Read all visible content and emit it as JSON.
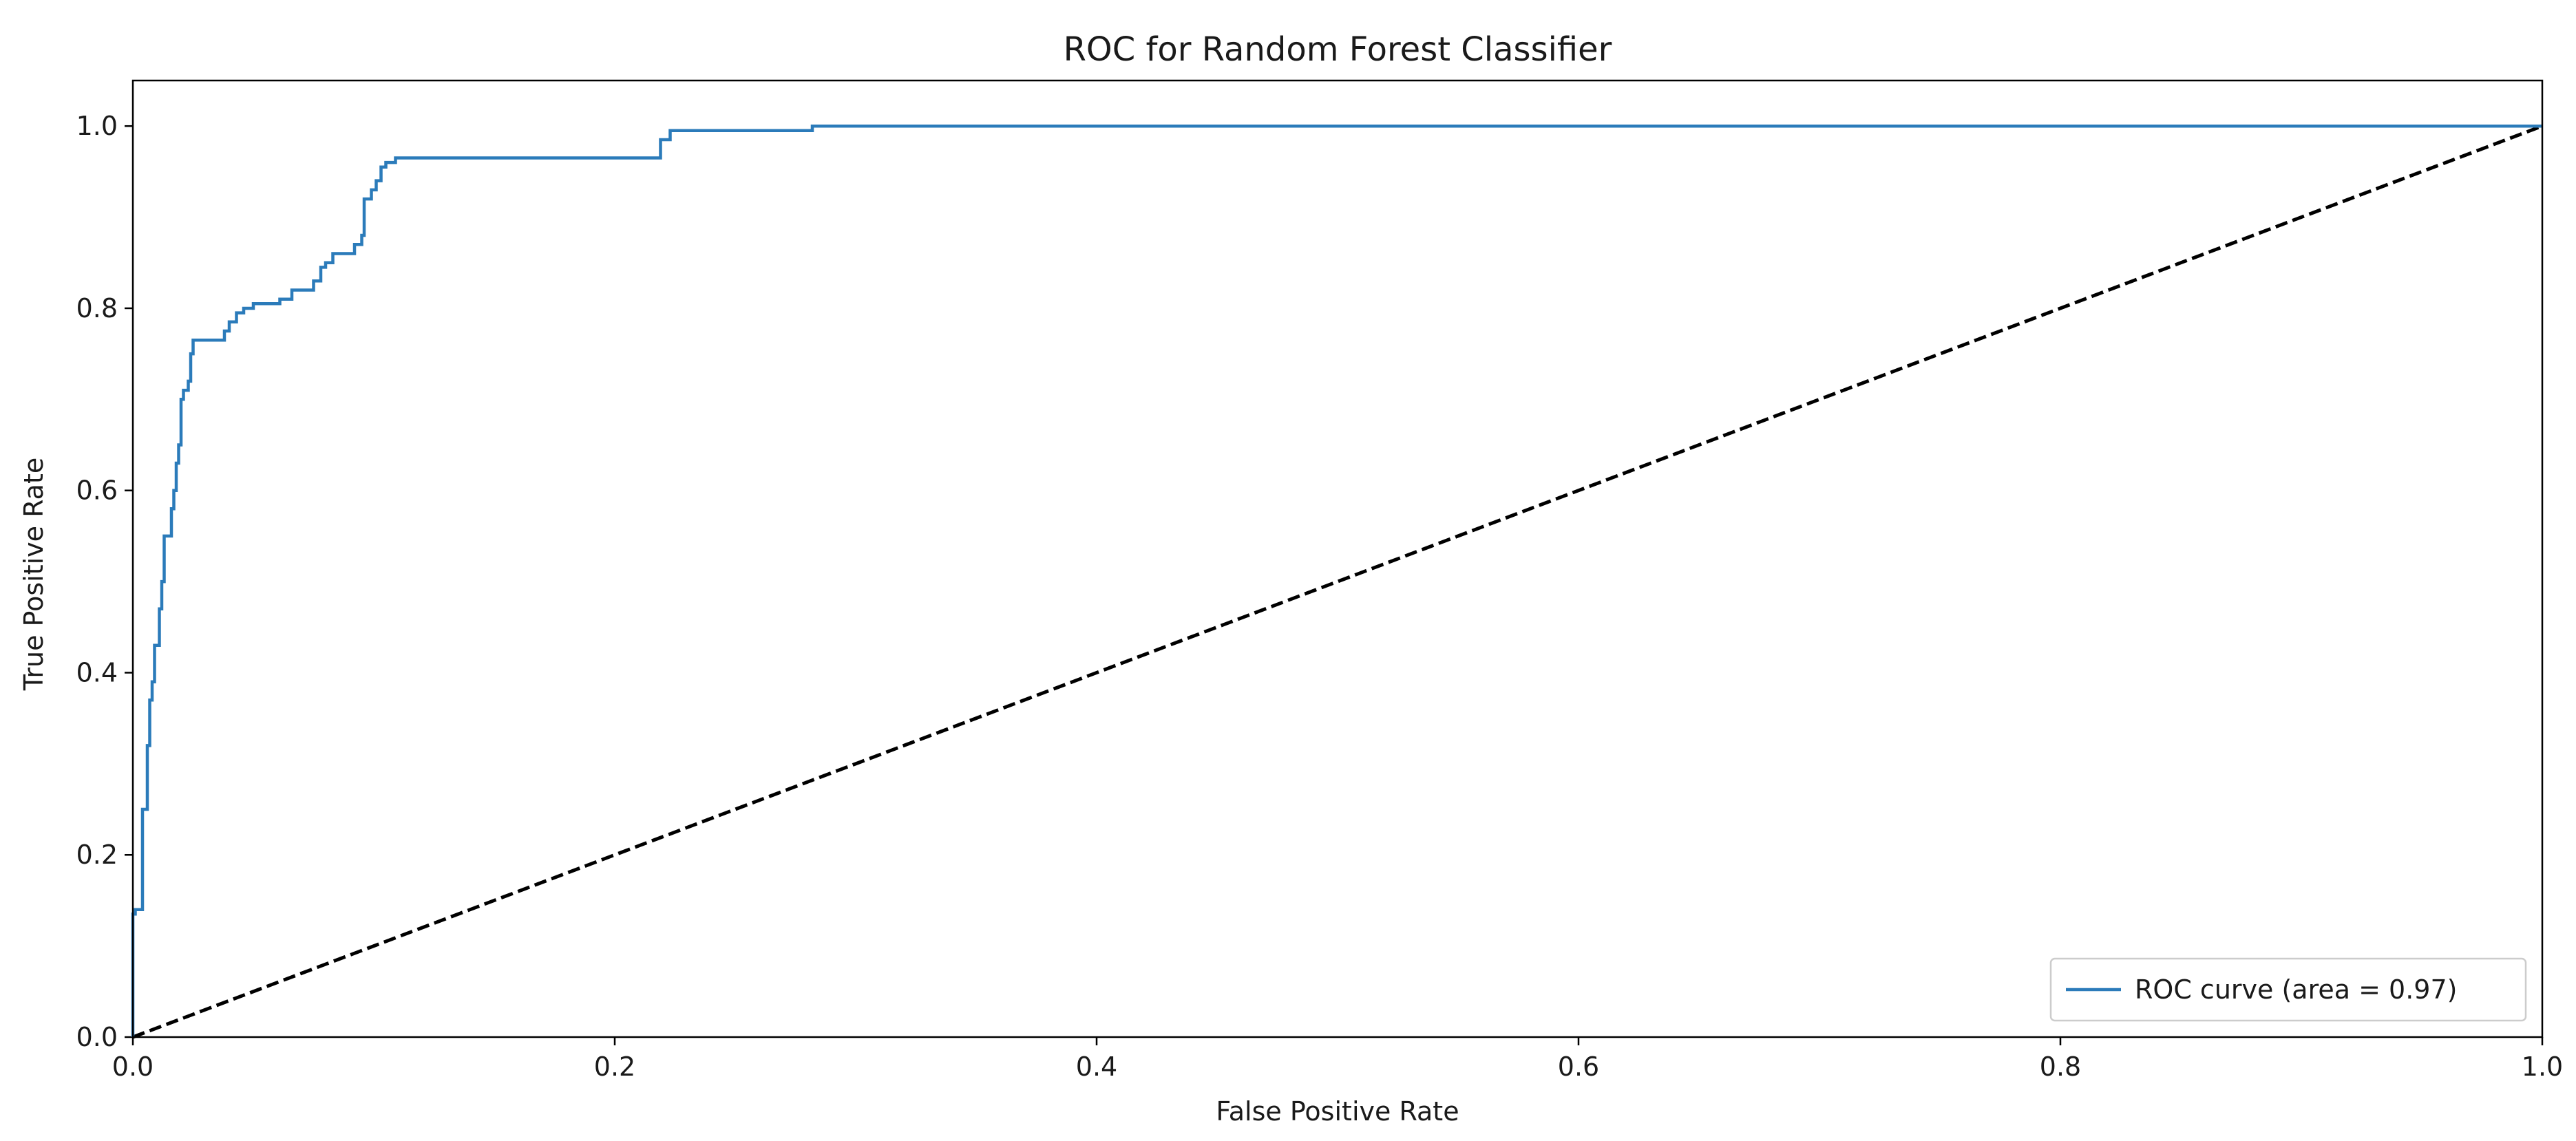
{
  "chart_data": {
    "type": "line",
    "title": "ROC for Random Forest Classifier",
    "xlabel": "False Positive Rate",
    "ylabel": "True Positive Rate",
    "xlim": [
      0.0,
      1.0
    ],
    "ylim": [
      0.0,
      1.05
    ],
    "xticks": [
      "0.0",
      "0.2",
      "0.4",
      "0.6",
      "0.8",
      "1.0"
    ],
    "yticks": [
      "0.0",
      "0.2",
      "0.4",
      "0.6",
      "0.8",
      "1.0"
    ],
    "grid": false,
    "legend_position": "lower-right",
    "series": [
      {
        "name": "ROC curve (area = 0.97)",
        "color": "#2b7bba",
        "style": "solid",
        "x": [
          0.0,
          0.0,
          0.0,
          0.001,
          0.001,
          0.004,
          0.004,
          0.006,
          0.006,
          0.007,
          0.007,
          0.008,
          0.008,
          0.009,
          0.009,
          0.011,
          0.011,
          0.012,
          0.012,
          0.013,
          0.013,
          0.016,
          0.016,
          0.017,
          0.017,
          0.018,
          0.018,
          0.019,
          0.019,
          0.02,
          0.02,
          0.021,
          0.021,
          0.023,
          0.023,
          0.024,
          0.024,
          0.025,
          0.025,
          0.026,
          0.026,
          0.03,
          0.038,
          0.038,
          0.04,
          0.04,
          0.043,
          0.043,
          0.046,
          0.046,
          0.05,
          0.05,
          0.061,
          0.061,
          0.066,
          0.066,
          0.075,
          0.075,
          0.078,
          0.078,
          0.08,
          0.08,
          0.083,
          0.083,
          0.092,
          0.092,
          0.095,
          0.095,
          0.096,
          0.096,
          0.099,
          0.099,
          0.101,
          0.101,
          0.103,
          0.103,
          0.105,
          0.105,
          0.109,
          0.109,
          0.112,
          0.112,
          0.219,
          0.219,
          0.223,
          0.223,
          0.282,
          0.282,
          1.0
        ],
        "y": [
          0.0,
          0.1,
          0.135,
          0.135,
          0.14,
          0.14,
          0.25,
          0.25,
          0.32,
          0.32,
          0.37,
          0.37,
          0.39,
          0.39,
          0.43,
          0.43,
          0.47,
          0.47,
          0.5,
          0.5,
          0.55,
          0.55,
          0.58,
          0.58,
          0.6,
          0.6,
          0.63,
          0.63,
          0.65,
          0.65,
          0.7,
          0.7,
          0.71,
          0.71,
          0.72,
          0.72,
          0.75,
          0.75,
          0.765,
          0.765,
          0.765,
          0.765,
          0.765,
          0.775,
          0.775,
          0.785,
          0.785,
          0.795,
          0.795,
          0.8,
          0.8,
          0.805,
          0.805,
          0.81,
          0.81,
          0.82,
          0.82,
          0.83,
          0.83,
          0.845,
          0.845,
          0.85,
          0.85,
          0.86,
          0.86,
          0.87,
          0.87,
          0.88,
          0.88,
          0.92,
          0.92,
          0.93,
          0.93,
          0.94,
          0.94,
          0.955,
          0.955,
          0.96,
          0.96,
          0.965,
          0.965,
          0.965,
          0.965,
          0.985,
          0.985,
          0.995,
          0.995,
          1.0,
          1.0
        ]
      },
      {
        "name": "",
        "color": "#000000",
        "style": "dashed",
        "x": [
          0.0,
          1.0
        ],
        "y": [
          0.0,
          1.0
        ]
      }
    ],
    "legend": [
      {
        "label": "ROC curve (area = 0.97)",
        "color": "#2b7bba"
      }
    ]
  }
}
